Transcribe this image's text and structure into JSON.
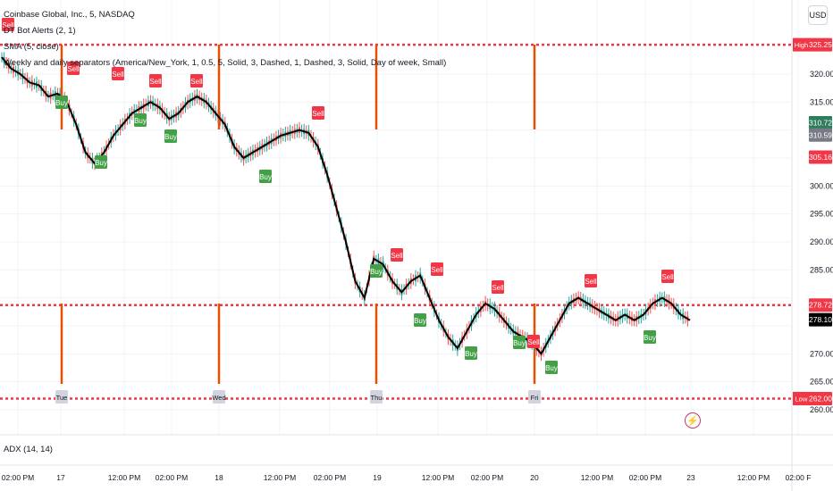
{
  "legend": {
    "symbol_line": "Coinbase Global, Inc., 5, NASDAQ",
    "bot_line": "DT Bot Alerts (2, 1)",
    "sma_line": "SMA (5, close)",
    "separator_line": "Weekly and daily separators (America/New_York, 1, 0.5, 5, Solid, 3, Dashed, 1, Dashed, 3, Solid, Day of week, Small)"
  },
  "currency_button": "USD",
  "adx_label": "ADX (14, 14)",
  "bolt_icon": "lightning-icon",
  "colors": {
    "up": "#26a69a",
    "down": "#ef5350",
    "sma": "#000000",
    "separator": "#e65100",
    "high_low_line": "#f23645",
    "buy": "#43a047",
    "sell": "#f23645"
  },
  "price_axis": {
    "ticks": [
      "320.00",
      "315.00",
      "300.00",
      "295.00",
      "290.00",
      "285.00",
      "270.00",
      "265.00",
      "260.00"
    ],
    "high_label": "High",
    "high_value": "325.25",
    "low_label": "Low",
    "low_value": "262.00",
    "tag_310_72": "310.72",
    "tag_310_59": "310.59",
    "tag_305_16": "305.16",
    "tag_278_72": "278.72",
    "tag_278_10": "278.10"
  },
  "time_axis": [
    "02:00 PM",
    "17",
    "12:00 PM",
    "02:00 PM",
    "18",
    "12:00 PM",
    "02:00 PM",
    "19",
    "12:00 PM",
    "02:00 PM",
    "20",
    "12:00 PM",
    "02:00 PM",
    "23",
    "12:00 PM",
    "02:00 F"
  ],
  "day_labels": [
    "Tue",
    "Wed",
    "Thu",
    "Fri"
  ],
  "signals": {
    "buy": "Buy",
    "sell": "Sell"
  },
  "chart_data": {
    "type": "line",
    "title": "Coinbase Global, Inc., 5, NASDAQ",
    "ylim": [
      258,
      328
    ],
    "series": [
      {
        "name": "SMA (5, close)",
        "values": [
          323,
          321,
          320,
          318.5,
          318,
          316,
          316.5,
          315,
          311,
          306,
          304,
          306,
          309,
          311,
          313,
          314,
          315,
          314,
          312,
          313,
          315,
          316,
          315,
          313,
          311,
          307,
          305,
          306,
          307,
          308,
          309,
          309.5,
          310,
          309.5,
          307,
          302,
          296,
          290,
          283,
          280,
          287,
          286,
          283,
          281,
          283,
          284,
          280,
          276,
          273,
          271,
          274,
          277,
          279,
          278,
          276,
          274,
          273,
          272,
          270,
          273,
          276,
          279,
          280,
          279,
          278,
          277,
          276,
          277,
          276,
          277,
          279,
          280,
          279,
          277,
          276
        ]
      }
    ],
    "levels": {
      "high": 325.25,
      "low": 262.0,
      "current": 278.72,
      "last": 278.1
    },
    "buy_signals": 14,
    "sell_signals": 14
  }
}
